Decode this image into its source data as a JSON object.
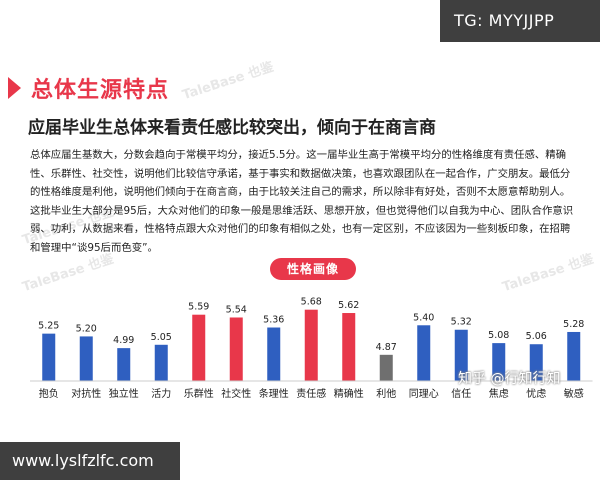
{
  "badges": {
    "tg": "TG: MYYJJPP",
    "url": "www.lyslfzlfc.com"
  },
  "watermarks": {
    "brand": "TaleBase 也鉴",
    "zhihu": "知乎 @行知行知"
  },
  "section": {
    "title": "总体生源特点",
    "subtitle": "应届毕业生总体来看责任感比较突出，倾向于在商言商"
  },
  "paragraphs": [
    "总体应届生基数大，分数会趋向于常模平均分，接近5.5分。这一届毕业生高于常模平均分的性格维度有责任感、精确性、乐群性、社交性，说明他们比较信守承诺，基于事实和数据做决策，也喜欢跟团队在一起合作，广交朋友。最低分的性格维度是利他，说明他们倾向于在商言商，由于比较关注自己的需求，所以除非有好处，否则不太愿意帮助别人。",
    "这批毕业生大部分是95后，大众对他们的印象一般是思维活跃、思想开放，但也觉得他们以自我为中心、团队合作意识弱、功利，从数据来看，性格特点跟大众对他们的印象有相似之处，也有一定区别，不应该因为一些刻板印象，在招聘和管理中“谈95后而色变”。"
  ],
  "chart_data": {
    "type": "bar",
    "title": "性格画像",
    "categories": [
      "抱负",
      "对抗性",
      "独立性",
      "活力",
      "乐群性",
      "社交性",
      "条理性",
      "责任感",
      "精确性",
      "利他",
      "同理心",
      "信任",
      "焦虑",
      "忧虑",
      "敏感"
    ],
    "values": [
      5.25,
      5.2,
      4.99,
      5.05,
      5.59,
      5.54,
      5.36,
      5.68,
      5.62,
      4.87,
      5.4,
      5.32,
      5.08,
      5.06,
      5.28
    ],
    "value_labels": [
      "5.25",
      "5.20",
      "4.99",
      "5.05",
      "5.59",
      "5.54",
      "5.36",
      "5.68",
      "5.62",
      "4.87",
      "5.40",
      "5.32",
      "5.08",
      "5.06",
      "5.28"
    ],
    "highlight": [
      "normal",
      "normal",
      "normal",
      "normal",
      "high",
      "high",
      "normal",
      "high",
      "high",
      "low",
      "normal",
      "normal",
      "normal",
      "normal",
      "normal"
    ],
    "colors": {
      "normal": "#2f5fc0",
      "high": "#e8374a",
      "low": "#6f6f6f"
    },
    "ylim": [
      4.4,
      5.8
    ],
    "grid": false,
    "legend": "none"
  }
}
